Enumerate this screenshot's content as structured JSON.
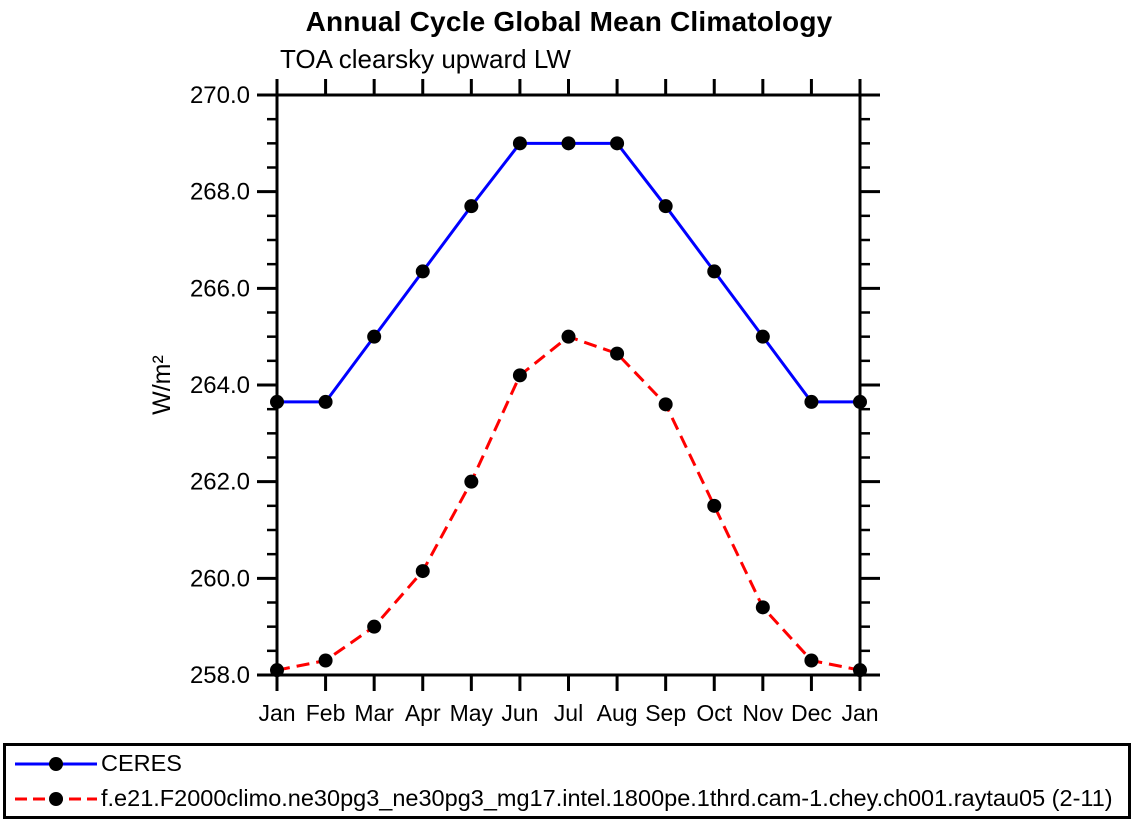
{
  "chart_data": {
    "type": "line",
    "title": "Annual Cycle Global Mean Climatology",
    "subtitle": "TOA clearsky upward LW",
    "ylabel": "W/m²",
    "x_categories": [
      "Jan",
      "Feb",
      "Mar",
      "Apr",
      "May",
      "Jun",
      "Jul",
      "Aug",
      "Sep",
      "Oct",
      "Nov",
      "Dec",
      "Jan"
    ],
    "ylim": [
      258.0,
      270.0
    ],
    "ytick_interval_major": 2.0,
    "ytick_interval_minor": 0.5,
    "ytick_labels": [
      "258.0",
      "260.0",
      "262.0",
      "264.0",
      "266.0",
      "268.0",
      "270.0"
    ],
    "grid": false,
    "legend_position": "bottom-outside",
    "axis_color": "#000000",
    "background_color": "#ffffff",
    "series": [
      {
        "name": "CERES",
        "color": "#0000ff",
        "line_style": "solid",
        "marker": "filled-circle",
        "marker_color": "#000000",
        "values": [
          263.65,
          263.65,
          265.0,
          266.35,
          267.7,
          269.0,
          269.0,
          269.0,
          267.7,
          266.35,
          265.0,
          263.65,
          263.65
        ]
      },
      {
        "name": "f.e21.F2000climo.ne30pg3_ne30pg3_mg17.intel.1800pe.1thrd.cam-1.chey.ch001.raytau05 (2-11)",
        "color": "#ff0000",
        "line_style": "dashed",
        "marker": "filled-circle",
        "marker_color": "#000000",
        "values": [
          258.1,
          258.3,
          259.0,
          260.15,
          262.0,
          264.2,
          265.0,
          264.65,
          263.6,
          261.5,
          259.4,
          258.3,
          258.1
        ]
      }
    ]
  }
}
